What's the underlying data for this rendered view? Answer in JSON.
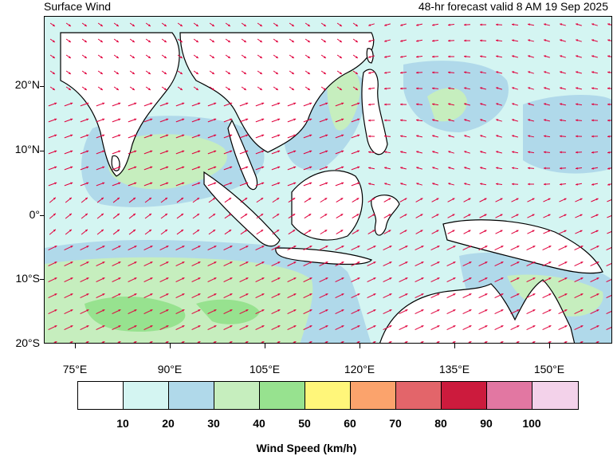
{
  "header": {
    "title": "Surface Wind",
    "valid_time": "48-hr forecast valid 8 AM 19 Sep 2025"
  },
  "map": {
    "latitude_labels": [
      "20°N",
      "10°N",
      "0°",
      "10°S",
      "20°S"
    ],
    "longitude_labels": [
      "75°E",
      "90°E",
      "105°E",
      "120°E",
      "135°E",
      "150°E"
    ],
    "arrow_color": "#e0003c",
    "coast_color": "#000000"
  },
  "colorbar": {
    "title": "Wind Speed (km/h)",
    "colors": [
      "#ffffff",
      "#d4f5f2",
      "#b0d9ea",
      "#c6eebe",
      "#97e28f",
      "#fff67a",
      "#fba36c",
      "#e3656a",
      "#cc1b3d",
      "#e277a2",
      "#f3d2ea"
    ],
    "tick_labels": [
      "10",
      "20",
      "30",
      "40",
      "50",
      "60",
      "70",
      "80",
      "90",
      "100"
    ]
  }
}
